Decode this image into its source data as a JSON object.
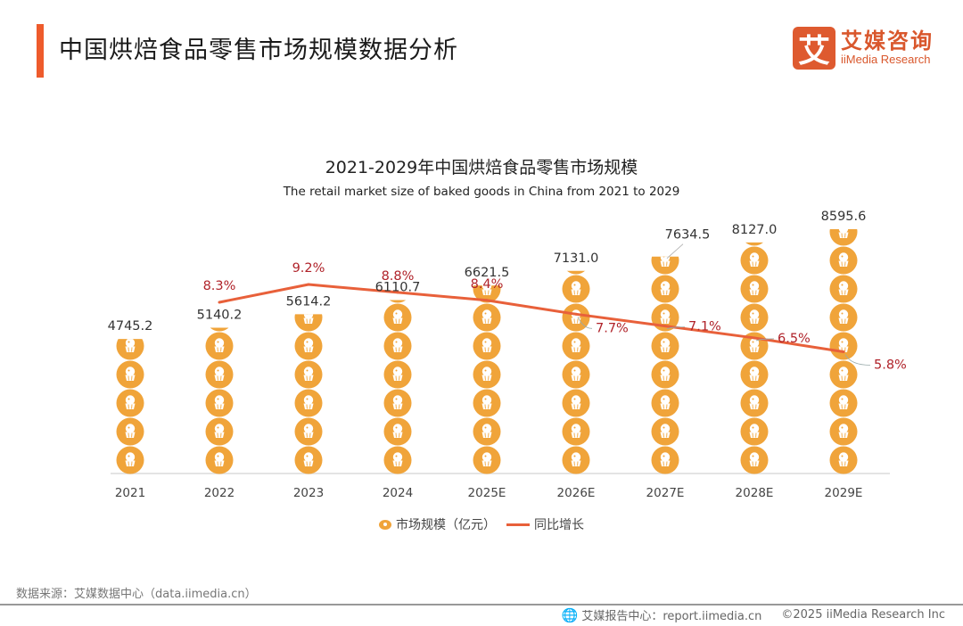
{
  "header": {
    "title": "中国烘焙食品零售市场规模数据分析",
    "logo_mark": "艾",
    "logo_cn": "艾媒咨询",
    "logo_en": "iiMedia Research"
  },
  "colors": {
    "accent": "#ee5b2c",
    "bar": "#f0a43a",
    "line": "#e8603a",
    "line_label": "#b0232a",
    "value_label": "#333333"
  },
  "chart_data": {
    "type": "bar",
    "subtype": "pictorial-stacked-icons-with-line",
    "title": "2021-2029年中国烘焙食品零售市场规模",
    "subtitle": "The retail market size of baked goods in China from 2021 to 2029",
    "categories": [
      "2021",
      "2022",
      "2023",
      "2024",
      "2025E",
      "2026E",
      "2027E",
      "2028E",
      "2029E"
    ],
    "series": [
      {
        "name": "市场规模（亿元）",
        "type": "bar",
        "icon": "cupcake-icon",
        "unit_per_icon": 1000,
        "values": [
          4745.2,
          5140.2,
          5614.2,
          6110.7,
          6621.5,
          7131.0,
          7634.5,
          8127.0,
          8595.6
        ],
        "labels": [
          "4745.2",
          "5140.2",
          "5614.2",
          "6110.7",
          "6621.5",
          "7131.0",
          "7634.5",
          "8127.0",
          "8595.6"
        ]
      },
      {
        "name": "同比增长",
        "type": "line",
        "values": [
          null,
          8.3,
          9.2,
          8.8,
          8.4,
          7.7,
          7.1,
          6.5,
          5.8
        ],
        "labels": [
          "",
          "8.3%",
          "9.2%",
          "8.8%",
          "8.4%",
          "7.7%",
          "7.1%",
          "6.5%",
          "5.8%"
        ]
      }
    ],
    "xlabel": "",
    "ylabel": "",
    "grid": false,
    "legend": "bottom-center"
  },
  "legend": {
    "bar_label": "市场规模（亿元）",
    "line_label": "同比增长"
  },
  "footer": {
    "source": "数据来源：艾媒数据中心（data.iimedia.cn）",
    "report_center": "艾媒报告中心：report.iimedia.cn",
    "copyright": "©2025  iiMedia Research  Inc"
  }
}
